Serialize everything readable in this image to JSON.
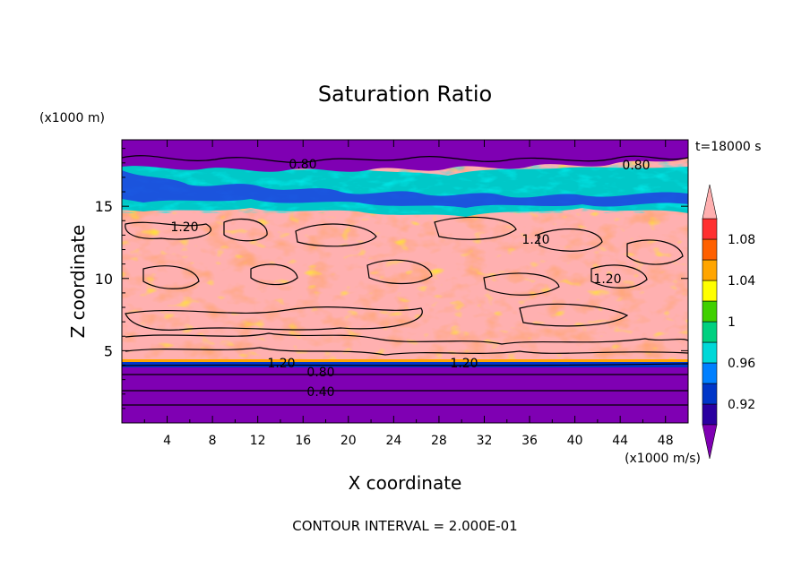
{
  "chart_data": {
    "type": "heatmap",
    "title": "Saturation Ratio",
    "xlabel": "X coordinate",
    "ylabel": "Z coordinate",
    "x_units": "(x1000 m/s)",
    "y_units": "(x1000 m)",
    "time_label": "t=18000 s",
    "footer": "CONTOUR INTERVAL = 2.000E-01",
    "xlim": [
      0,
      50
    ],
    "ylim": [
      0,
      19.6
    ],
    "x_ticks": [
      "4",
      "8",
      "12",
      "16",
      "20",
      "24",
      "28",
      "32",
      "36",
      "40",
      "44",
      "48"
    ],
    "y_ticks": [
      "5",
      "10",
      "15"
    ],
    "colorbar": {
      "labels": [
        "1.08",
        "1.04",
        "1",
        "0.96",
        "0.92"
      ],
      "colors": [
        "#7f00b3",
        "#2a00a0",
        "#0036c8",
        "#0080ff",
        "#00d8d8",
        "#00d080",
        "#40d000",
        "#ffff00",
        "#ffa500",
        "#ff6000",
        "#ff3030",
        "#ffb0b0"
      ]
    },
    "contour_labels": [
      "0.80",
      "0.80",
      "1.20",
      "1.20",
      "1.20",
      "1.20",
      "1.20",
      "0.80",
      "0.40"
    ]
  }
}
